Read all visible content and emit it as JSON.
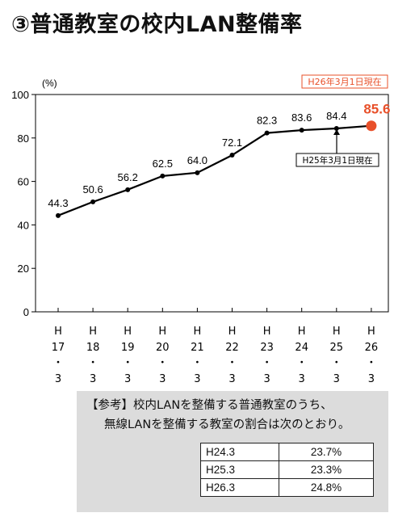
{
  "title": "③普通教室の校内LAN整備率",
  "chart_data": {
    "type": "line",
    "ylabel": "(%)",
    "ylim": [
      0,
      100
    ],
    "yticks": [
      0,
      20,
      40,
      60,
      80,
      100
    ],
    "categories": [
      [
        "H",
        "17",
        "・",
        "3"
      ],
      [
        "H",
        "18",
        "・",
        "3"
      ],
      [
        "H",
        "19",
        "・",
        "3"
      ],
      [
        "H",
        "20",
        "・",
        "3"
      ],
      [
        "H",
        "21",
        "・",
        "3"
      ],
      [
        "H",
        "22",
        "・",
        "3"
      ],
      [
        "H",
        "23",
        "・",
        "3"
      ],
      [
        "H",
        "24",
        "・",
        "3"
      ],
      [
        "H",
        "25",
        "・",
        "3"
      ],
      [
        "H",
        "26",
        "・",
        "3"
      ]
    ],
    "values": [
      44.3,
      50.6,
      56.2,
      62.5,
      64.0,
      72.1,
      82.3,
      83.6,
      84.4,
      85.6
    ],
    "value_labels": [
      "44.3",
      "50.6",
      "56.2",
      "62.5",
      "64.0",
      "72.1",
      "82.3",
      "83.6",
      "84.4",
      "85.6"
    ],
    "highlight": {
      "index": 9,
      "color": "#e8502a",
      "label": "H26年3月1日現在"
    },
    "annotation": {
      "index": 8,
      "label": "H25年3月1日現在"
    },
    "grid": false,
    "line_color": "#000000"
  },
  "reference": {
    "line1": "【参考】校内LANを整備する普通教室のうち、",
    "line2": "無線LANを整備する教室の割合は次のとおり。",
    "rows": [
      {
        "period": "H24.3",
        "value": "23.7%"
      },
      {
        "period": "H25.3",
        "value": "23.3%"
      },
      {
        "period": "H26.3",
        "value": "24.8%"
      }
    ]
  }
}
